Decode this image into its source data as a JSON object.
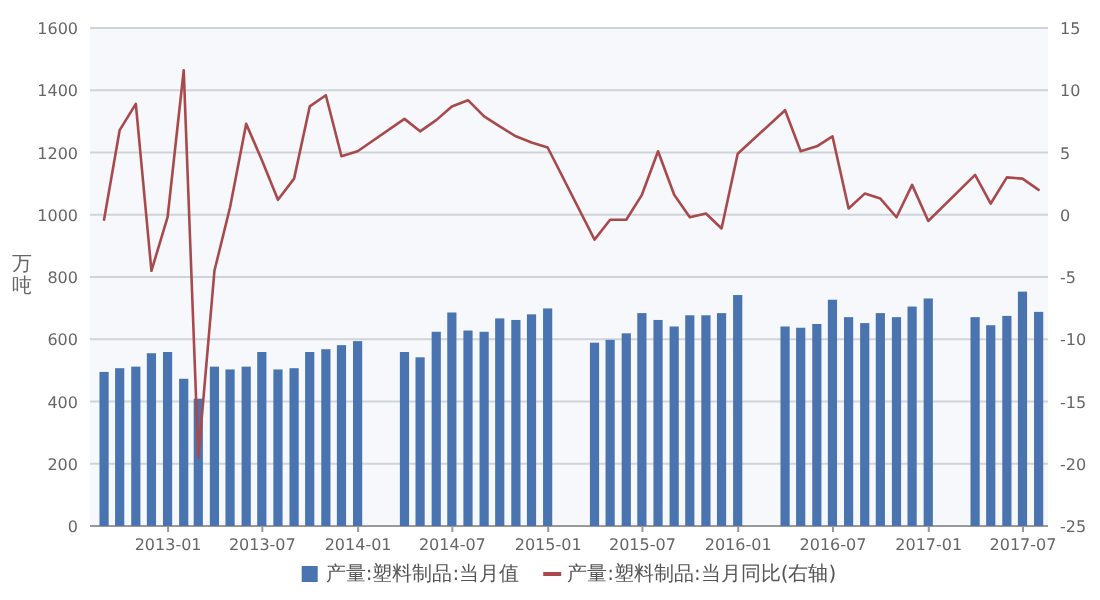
{
  "chart_data": {
    "type": "bar",
    "ylabel": "万吨",
    "legend": "bottom",
    "grid": "y",
    "x": [
      "2012-08-31",
      "2012-09-30",
      "2012-10-31",
      "2012-11-30",
      "2012-12-31",
      "2013-01-31",
      "2013-02-28",
      "2013-03-31",
      "2013-04-30",
      "2013-05-31",
      "2013-06-30",
      "2013-07-31",
      "2013-08-31",
      "2013-09-30",
      "2013-10-31",
      "2013-11-30",
      "2013-12-31",
      "2014-03-31",
      "2014-04-30",
      "2014-05-31",
      "2014-06-30",
      "2014-07-31",
      "2014-08-31",
      "2014-09-30",
      "2014-10-31",
      "2014-11-30",
      "2014-12-31",
      "2015-03-31",
      "2015-04-30",
      "2015-05-31",
      "2015-06-30",
      "2015-07-31",
      "2015-08-31",
      "2015-09-30",
      "2015-10-31",
      "2015-11-30",
      "2015-12-31",
      "2016-03-31",
      "2016-04-30",
      "2016-05-31",
      "2016-06-30",
      "2016-07-31",
      "2016-08-31",
      "2016-09-30",
      "2016-10-31",
      "2016-11-30",
      "2016-12-31",
      "2017-03-31",
      "2017-04-30",
      "2017-05-31",
      "2017-06-30",
      "2017-07-31"
    ],
    "series": [
      {
        "name": "产量:塑料制品:当月值",
        "color": "#4a74b0",
        "values": [
          495,
          507,
          512,
          555,
          559,
          473,
          409,
          512,
          503,
          512,
          559,
          503,
          507,
          559,
          568,
          581,
          594,
          559,
          542,
          624,
          686,
          628,
          624,
          667,
          662,
          680,
          699,
          589,
          598,
          619,
          684,
          662,
          641,
          677,
          677,
          684,
          742,
          641,
          637,
          649,
          727,
          671,
          652,
          684,
          671,
          705,
          731,
          671,
          645,
          675,
          753,
          688
        ]
      },
      {
        "name": "产量:塑料制品:当月同比(右轴)",
        "type": "line",
        "axis": "y2",
        "color": "#a8494c",
        "values": [
          -0.4,
          6.8,
          8.9,
          -4.5,
          -0.2,
          11.6,
          -19.5,
          -4.5,
          0.6,
          7.3,
          4.4,
          1.2,
          2.9,
          8.7,
          9.6,
          4.7,
          5.1,
          7.7,
          6.7,
          7.6,
          8.7,
          9.2,
          7.9,
          7.1,
          6.3,
          5.8,
          5.4,
          -2.0,
          -0.4,
          -0.4,
          1.6,
          5.1,
          1.6,
          -0.2,
          0.1,
          -1.1,
          4.9,
          8.4,
          5.1,
          5.5,
          6.3,
          0.5,
          1.7,
          1.3,
          -0.2,
          2.4,
          -0.5,
          3.2,
          0.9,
          3.0,
          2.9,
          2.0
        ]
      }
    ],
    "xlim": [
      "2012-08-04",
      "2017-08-18"
    ],
    "xticks": [
      {
        "value": "2013-01",
        "label": "2013-01"
      },
      {
        "value": "2013-07",
        "label": "2013-07"
      },
      {
        "value": "2014-01",
        "label": "2014-01"
      },
      {
        "value": "2014-07",
        "label": "2014-07"
      },
      {
        "value": "2015-01",
        "label": "2015-01"
      },
      {
        "value": "2015-07",
        "label": "2015-07"
      },
      {
        "value": "2016-01",
        "label": "2016-01"
      },
      {
        "value": "2016-07",
        "label": "2016-07"
      },
      {
        "value": "2017-01",
        "label": "2017-01"
      },
      {
        "value": "2017-07",
        "label": "2017-07"
      }
    ],
    "ylim": [
      0,
      1600
    ],
    "yticks": [
      0,
      200,
      400,
      600,
      800,
      1000,
      1200,
      1400,
      1600
    ],
    "y2lim": [
      -25,
      15
    ],
    "y2ticks": [
      -25,
      -20,
      -15,
      -10,
      -5,
      0,
      5,
      10,
      15
    ]
  }
}
